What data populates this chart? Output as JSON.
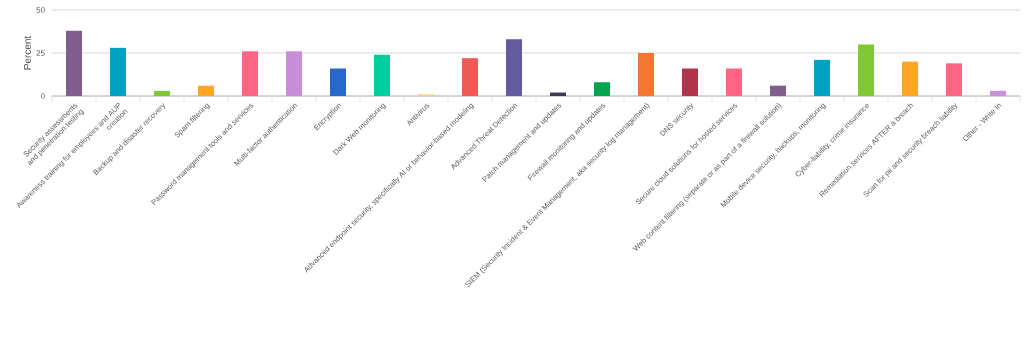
{
  "chart_data": {
    "type": "bar",
    "ylabel": "Percent",
    "categories": [
      "Security assessments and penetration testing",
      "Awareness training for employees and AUP creation",
      "Backup and disaster recovery",
      "Spam filtering",
      "Password management tools and services",
      "Multi-factor authentication",
      "Encryption",
      "Dark Web monitoring",
      "Antivirus",
      "Advanced endpoint security, specifically AI or behavior-based modeling",
      "Advanced Threat Detection",
      "Patch management and updates",
      "Firewall monitoring and updates",
      "SIEM (Security Incident & Event Management, aka security log management)",
      "DNS security",
      "Secure cloud solutions for hosted services",
      "Web content filtering (separate or as part of a firewall solution)",
      "Mobile device security, backups, monitoring",
      "Cyber-liability, crime insurance",
      "Remediation services AFTER a breach",
      "Scan for pii and security breach liability",
      "Other - Write In"
    ],
    "values": [
      38,
      28,
      3,
      6,
      26,
      26,
      16,
      24,
      1,
      22,
      33,
      2,
      8,
      25,
      16,
      16,
      6,
      21,
      30,
      20,
      19,
      3
    ],
    "colors": [
      "#7f5e8d",
      "#00a0c3",
      "#7fc832",
      "#ffa52a",
      "#ff6584",
      "#c98ed8",
      "#2a67cb",
      "#00d09f",
      "#ffd27f",
      "#ee5a55",
      "#635b9e",
      "#373b4d",
      "#00a550",
      "#f07832",
      "#b2344c",
      "#ff6584",
      "#7f5e8d",
      "#00a0c3",
      "#7fc832",
      "#ffa52a",
      "#ff6584",
      "#c98ed8"
    ],
    "ylim": [
      0,
      50
    ],
    "yticks": [
      0,
      25,
      50
    ],
    "grid": "y"
  }
}
